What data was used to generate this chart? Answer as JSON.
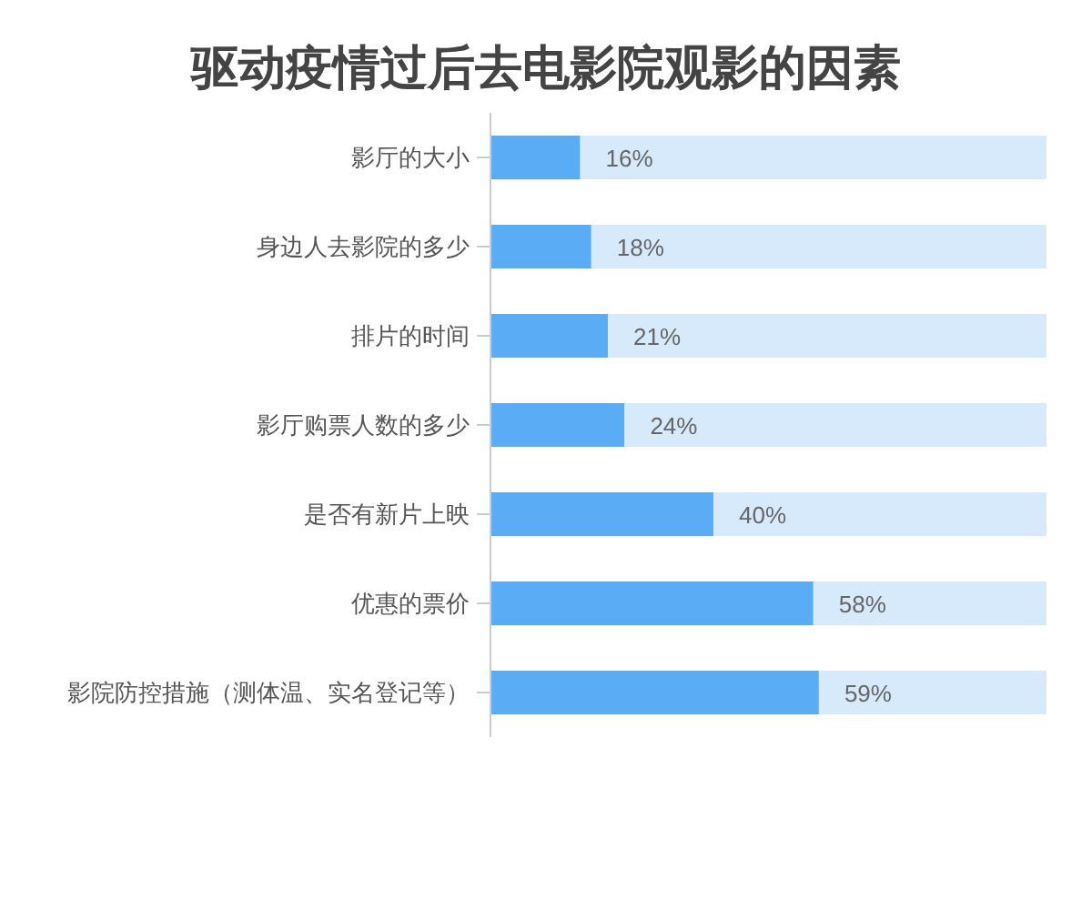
{
  "chart_data": {
    "type": "bar",
    "orientation": "horizontal",
    "stacked": true,
    "title": "驱动疫情过后去电影院观影的因素",
    "categories": [
      "影厅的大小",
      "身边人去影院的多少",
      "排片的时间",
      "影厅购票人数的多少",
      "是否有新片上映",
      "优惠的票价",
      "影院防控措施（测体温、实名登记等）"
    ],
    "series": [
      {
        "color": "#5aacf5",
        "values": [
          16,
          18,
          21,
          24,
          40,
          58,
          59
        ],
        "value_labels": [
          "16%",
          "18%",
          "21%",
          "24%",
          "40%",
          "58%",
          "59%"
        ]
      },
      {
        "color": "#d6eafc",
        "values": [
          84,
          82,
          79,
          76,
          60,
          42,
          41
        ]
      }
    ]
  }
}
